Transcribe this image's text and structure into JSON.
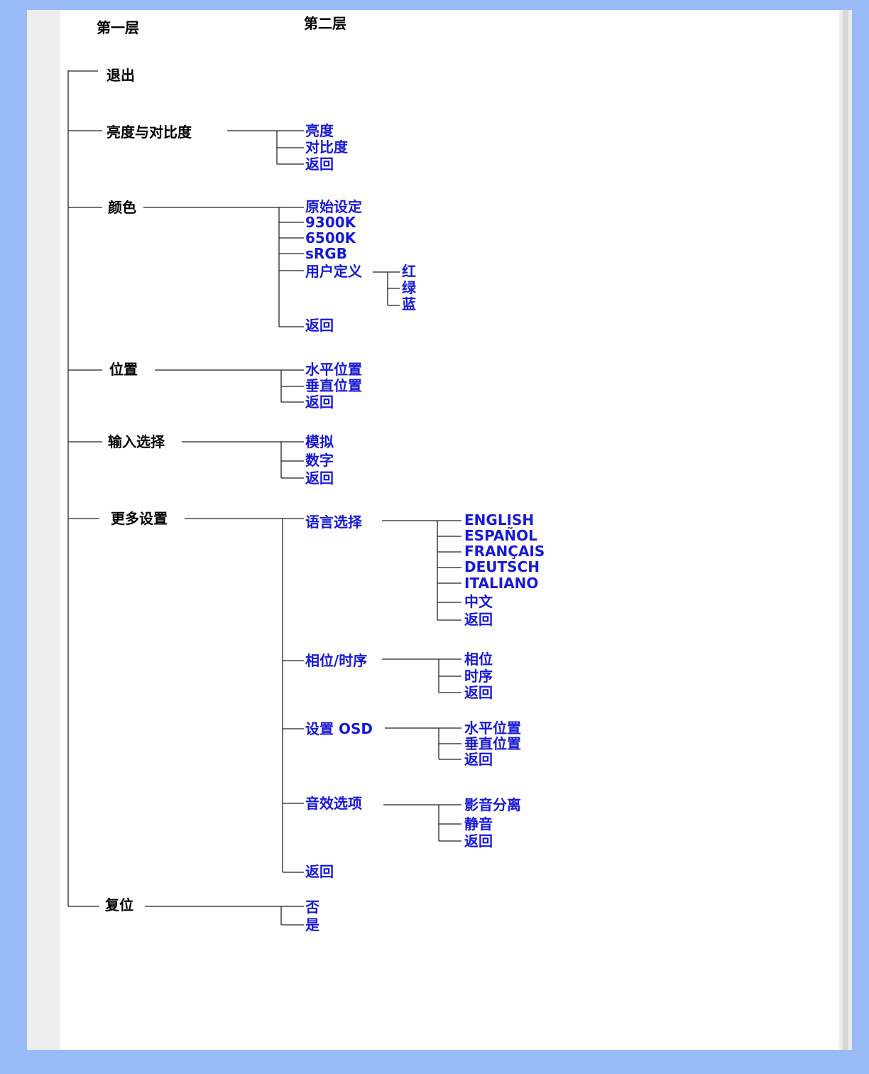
{
  "colors": {
    "background": "#99bbf8",
    "panel": "#ffffff",
    "level1_text": "#000000",
    "menu_text": "#1818d8",
    "lines": "#222222"
  },
  "headers": {
    "level1": "第一层",
    "level2": "第二层"
  },
  "menu": {
    "exit": "退出",
    "brightness_contrast": {
      "label": "亮度与对比度",
      "items": [
        "亮度",
        "对比度",
        "返回"
      ]
    },
    "color": {
      "label": "颜色",
      "items": [
        "原始设定",
        "9300K",
        "6500K",
        "sRGB",
        "用户定义",
        "返回"
      ],
      "user_define": [
        "红",
        "绿",
        "蓝"
      ]
    },
    "position": {
      "label": "位置",
      "items": [
        "水平位置",
        "垂直位置",
        "返回"
      ]
    },
    "input_select": {
      "label": "输入选择",
      "items": [
        "模拟",
        "数字",
        "返回"
      ]
    },
    "more_settings": {
      "label": "更多设置",
      "language": {
        "label": "语言选择",
        "items": [
          "ENGLISH",
          "ESPAÑOL",
          "FRANÇAIS",
          "DEUTSCH",
          "ITALIANO",
          "中文",
          "返回"
        ]
      },
      "phase_clock": {
        "label": "相位/时序",
        "items": [
          "相位",
          "时序",
          "返回"
        ]
      },
      "osd_settings": {
        "label": "设置 OSD",
        "items": [
          "水平位置",
          "垂直位置",
          "返回"
        ]
      },
      "audio": {
        "label": "音效选项",
        "items": [
          "影音分离",
          "静音",
          "返回"
        ]
      },
      "back": "返回"
    },
    "reset": {
      "label": "复位",
      "items": [
        "否",
        "是"
      ]
    }
  }
}
